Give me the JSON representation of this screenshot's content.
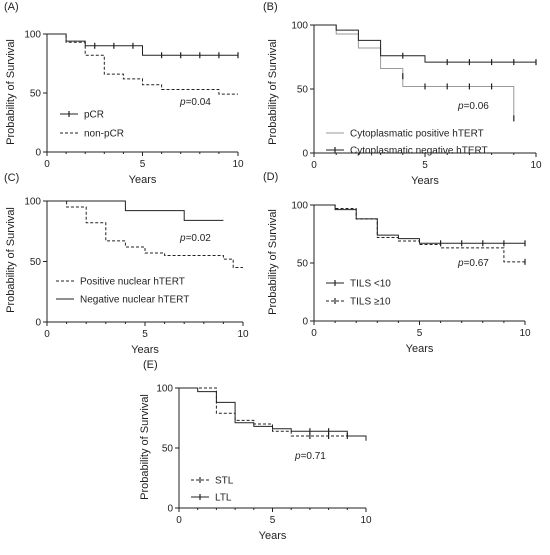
{
  "chart_data": [
    {
      "type": "line",
      "panel_label": "(A)",
      "xlabel": "Years",
      "ylabel": "Probability of Survival",
      "xlim": [
        0,
        10
      ],
      "ylim": [
        0,
        100
      ],
      "x_ticks": [
        "0",
        "5",
        "10"
      ],
      "y_ticks": [
        "0",
        "50",
        "100"
      ],
      "p_prefix": "p",
      "p_value": "=0.04",
      "legend_position": "bottom-left",
      "series": [
        {
          "name": "pCR",
          "style": "solid",
          "color": "#222222",
          "steps": [
            [
              0,
              100
            ],
            [
              1,
              94
            ],
            [
              2,
              90
            ],
            [
              5,
              82
            ],
            [
              10,
              82
            ]
          ],
          "censors": [
            [
              2.5,
              90
            ],
            [
              3.5,
              90
            ],
            [
              4.5,
              90
            ],
            [
              6,
              82
            ],
            [
              7,
              82
            ],
            [
              8,
              82
            ],
            [
              9,
              82
            ],
            [
              10,
              82
            ]
          ]
        },
        {
          "name": "non-pCR",
          "style": "dashed",
          "color": "#222222",
          "steps": [
            [
              0,
              100
            ],
            [
              1,
              93
            ],
            [
              2,
              82
            ],
            [
              3,
              66
            ],
            [
              4,
              62
            ],
            [
              5,
              57
            ],
            [
              6,
              53
            ],
            [
              9,
              49
            ],
            [
              10,
              49
            ]
          ],
          "censors": []
        }
      ]
    },
    {
      "type": "line",
      "panel_label": "(B)",
      "xlabel": "Years",
      "ylabel": "Probability of Survival",
      "xlim": [
        0,
        10
      ],
      "ylim": [
        0,
        100
      ],
      "x_ticks": [
        "0",
        "5",
        "10"
      ],
      "y_ticks": [
        "0",
        "50",
        "100"
      ],
      "p_prefix": "p",
      "p_value": "=0.06",
      "legend_position": "bottom-left",
      "series": [
        {
          "name": "Cytoplasmatic positive hTERT",
          "style": "solid",
          "color": "#9a9a9a",
          "steps": [
            [
              0,
              100
            ],
            [
              1,
              93
            ],
            [
              2,
              82
            ],
            [
              3,
              66
            ],
            [
              4,
              52
            ],
            [
              9,
              52
            ],
            [
              9,
              28
            ]
          ],
          "censors": []
        },
        {
          "name": "Cytoplasmatic negative hTERT",
          "style": "solid",
          "color": "#222222",
          "steps": [
            [
              0,
              100
            ],
            [
              1,
              96
            ],
            [
              2,
              88
            ],
            [
              3,
              76
            ],
            [
              5,
              71
            ],
            [
              10,
              71
            ]
          ],
          "censors": [
            [
              4,
              60
            ],
            [
              5,
              52
            ],
            [
              6,
              52
            ],
            [
              7,
              52
            ],
            [
              8,
              52
            ],
            [
              9,
              27
            ],
            [
              4,
              76
            ],
            [
              6,
              71
            ],
            [
              7,
              71
            ],
            [
              8,
              71
            ],
            [
              9,
              71
            ],
            [
              10,
              71
            ]
          ]
        }
      ]
    },
    {
      "type": "line",
      "panel_label": "(C)",
      "xlabel": "Years",
      "ylabel": "Probability of Survival",
      "xlim": [
        0,
        10
      ],
      "ylim": [
        0,
        100
      ],
      "x_ticks": [
        "0",
        "5",
        "10"
      ],
      "y_ticks": [
        "0",
        "50",
        "100"
      ],
      "p_prefix": "p",
      "p_value": "=0.02",
      "legend_position": "bottom-left",
      "series": [
        {
          "name": "Positive nuclear hTERT",
          "style": "dashed",
          "color": "#222222",
          "steps": [
            [
              0,
              100
            ],
            [
              1,
              95
            ],
            [
              2,
              82
            ],
            [
              3,
              67
            ],
            [
              4,
              62
            ],
            [
              5,
              57
            ],
            [
              6,
              55
            ],
            [
              9,
              52
            ],
            [
              9.5,
              45
            ],
            [
              10,
              45
            ]
          ],
          "censors": []
        },
        {
          "name": "Negative nuclear hTERT",
          "style": "solid",
          "color": "#222222",
          "steps": [
            [
              0,
              100
            ],
            [
              4,
              92
            ],
            [
              7,
              84
            ],
            [
              9,
              84
            ]
          ],
          "censors": []
        }
      ]
    },
    {
      "type": "line",
      "panel_label": "(D)",
      "xlabel": "Years",
      "ylabel": "Probability of Survival",
      "xlim": [
        0,
        10
      ],
      "ylim": [
        0,
        100
      ],
      "x_ticks": [
        "0",
        "5",
        "10"
      ],
      "y_ticks": [
        "0",
        "50",
        "100"
      ],
      "p_prefix": "p",
      "p_value": "=0.67",
      "legend_position": "bottom-left",
      "series": [
        {
          "name": "TILS <10",
          "style": "solid",
          "color": "#222222",
          "steps": [
            [
              0,
              100
            ],
            [
              1,
              96
            ],
            [
              2,
              88
            ],
            [
              3,
              74
            ],
            [
              4,
              71
            ],
            [
              5,
              67
            ],
            [
              10,
              67
            ]
          ],
          "censors": [
            [
              6,
              67
            ],
            [
              7,
              67
            ],
            [
              8,
              67
            ],
            [
              9,
              67
            ],
            [
              10,
              67
            ]
          ]
        },
        {
          "name": "TILS ≥10",
          "style": "dashed",
          "color": "#222222",
          "steps": [
            [
              0,
              100
            ],
            [
              1,
              97
            ],
            [
              2,
              88
            ],
            [
              3,
              72
            ],
            [
              4,
              69
            ],
            [
              5,
              66
            ],
            [
              6,
              63
            ],
            [
              9,
              51
            ],
            [
              10,
              51
            ]
          ],
          "censors": [
            [
              10,
              51
            ]
          ]
        }
      ]
    },
    {
      "type": "line",
      "panel_label": "(E)",
      "xlabel": "Years",
      "ylabel": "Probability of Survival",
      "xlim": [
        0,
        10
      ],
      "ylim": [
        0,
        100
      ],
      "x_ticks": [
        "0",
        "5",
        "10"
      ],
      "y_ticks": [
        "0",
        "50",
        "100"
      ],
      "p_prefix": "p",
      "p_value": "=0.71",
      "legend_position": "bottom-left",
      "series": [
        {
          "name": "STL",
          "style": "dashed",
          "color": "#222222",
          "steps": [
            [
              0,
              100
            ],
            [
              1,
              100
            ],
            [
              2,
              79
            ],
            [
              3,
              73
            ],
            [
              4,
              70
            ],
            [
              5,
              64
            ],
            [
              6,
              60
            ],
            [
              9,
              60
            ],
            [
              10,
              58
            ]
          ],
          "censors": [
            [
              7,
              60
            ],
            [
              8,
              60
            ],
            [
              9,
              60
            ]
          ]
        },
        {
          "name": "LTL",
          "style": "solid",
          "color": "#222222",
          "steps": [
            [
              0,
              100
            ],
            [
              1,
              97
            ],
            [
              2,
              88
            ],
            [
              3,
              71
            ],
            [
              4,
              68
            ],
            [
              5,
              66
            ],
            [
              6,
              64
            ],
            [
              9,
              60
            ],
            [
              10,
              56
            ]
          ],
          "censors": [
            [
              7,
              64
            ],
            [
              8,
              64
            ]
          ]
        }
      ]
    }
  ]
}
